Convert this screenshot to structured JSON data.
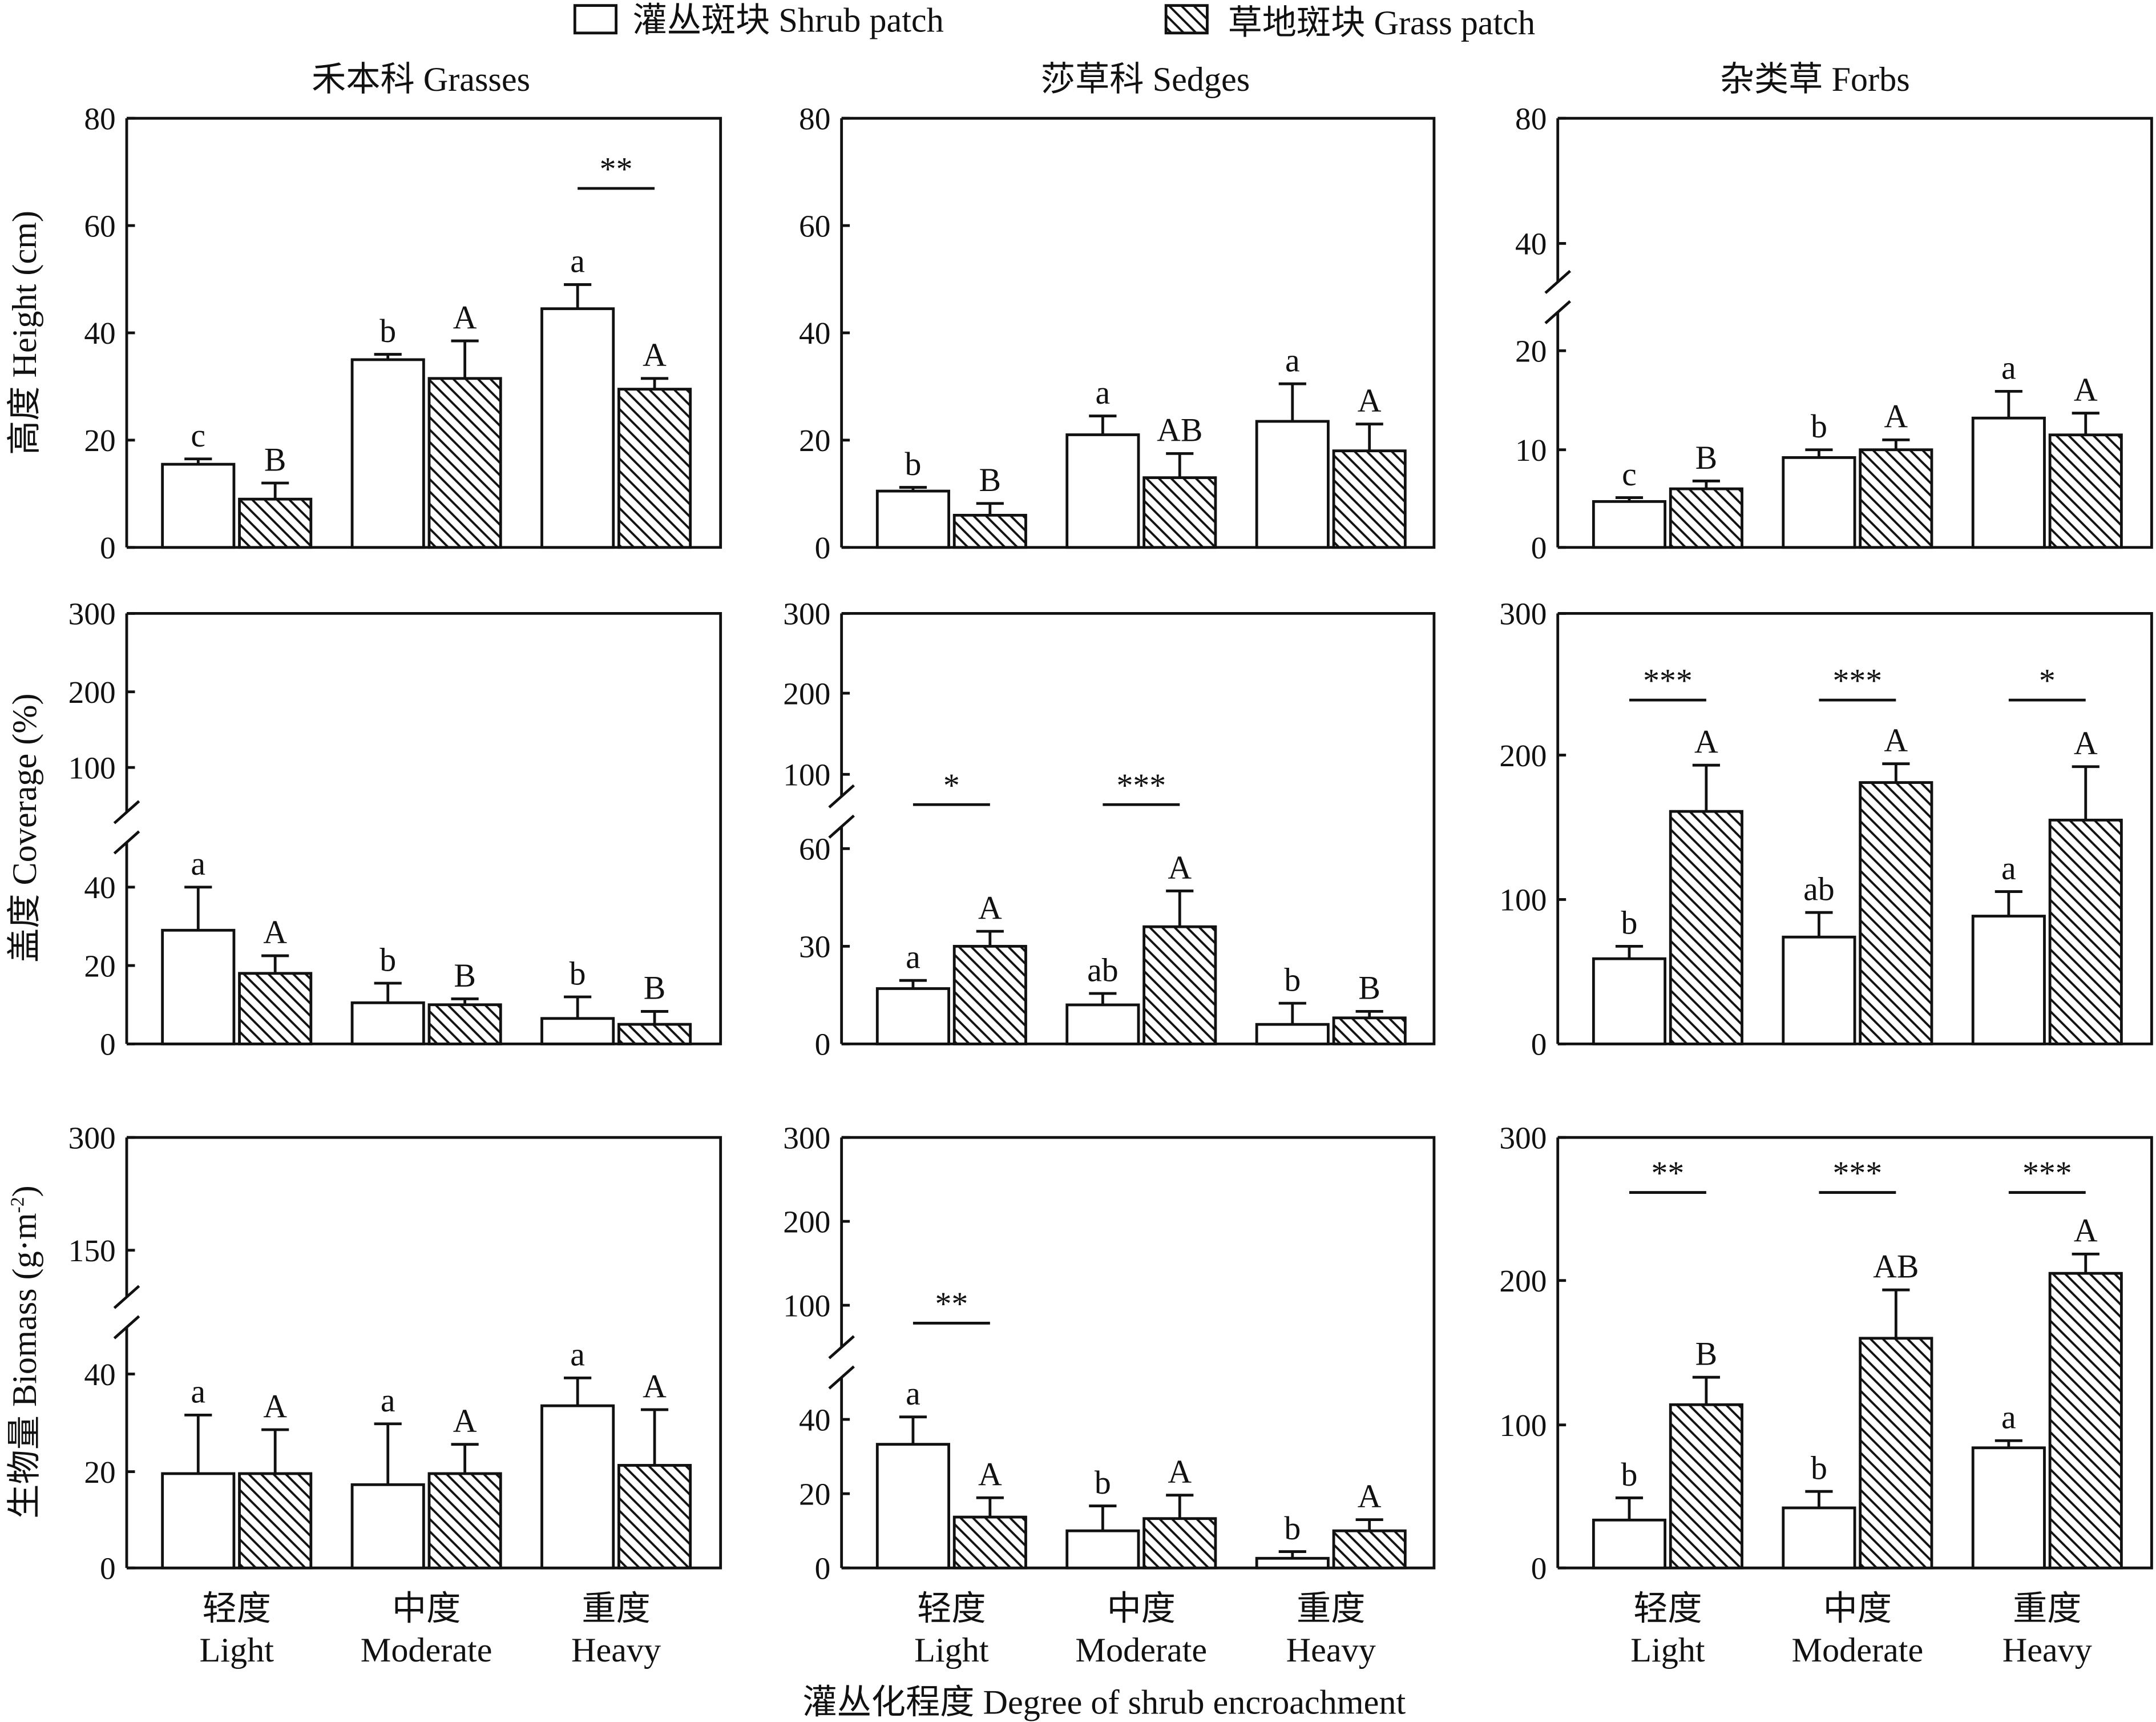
{
  "legend": {
    "shrub": "灌丛斑块 Shrub patch",
    "grass": "草地斑块 Grass patch"
  },
  "column_titles": [
    "禾本科 Grasses",
    "莎草科 Sedges",
    "杂类草 Forbs"
  ],
  "row_ylabels": [
    {
      "text": "高度 Height (cm)",
      "sup": ""
    },
    {
      "text": "盖度 Coverage (%)",
      "sup": ""
    },
    {
      "text": "生物量 Biomass (g·m",
      "sup": "-2",
      "tail": ")"
    }
  ],
  "categories": [
    {
      "zh": "轻度",
      "en": "Light"
    },
    {
      "zh": "中度",
      "en": "Moderate"
    },
    {
      "zh": "重度",
      "en": "Heavy"
    }
  ],
  "xlabel": "灌丛化程度 Degree of shrub encroachment",
  "colors": {
    "shrub_fill": "#ffffff",
    "grass_fill": "hatch",
    "line": "#111111"
  },
  "chart_data": [
    {
      "type": "bar",
      "row": 0,
      "col": 0,
      "y_ticks": [
        0,
        20,
        40,
        60,
        80
      ],
      "y_break": null,
      "series": [
        {
          "name": "Shrub patch",
          "values": [
            15.5,
            35,
            44.5
          ],
          "errors": [
            1,
            1,
            4.5
          ],
          "letters": [
            "c",
            "b",
            "a"
          ]
        },
        {
          "name": "Grass patch",
          "values": [
            9,
            31.5,
            29.5
          ],
          "errors": [
            3,
            7,
            2
          ],
          "letters": [
            "B",
            "A",
            "A"
          ]
        }
      ],
      "significance": [
        "",
        "",
        "**"
      ]
    },
    {
      "type": "bar",
      "row": 0,
      "col": 1,
      "y_ticks": [
        0,
        20,
        40,
        60,
        80
      ],
      "y_break": null,
      "series": [
        {
          "name": "Shrub patch",
          "values": [
            10.5,
            21,
            23.5
          ],
          "errors": [
            0.7,
            3.5,
            7
          ],
          "letters": [
            "b",
            "a",
            "a"
          ]
        },
        {
          "name": "Grass patch",
          "values": [
            6,
            13,
            18
          ],
          "errors": [
            2.2,
            4.5,
            5
          ],
          "letters": [
            "B",
            "AB",
            "A"
          ]
        }
      ],
      "significance": [
        "",
        "",
        ""
      ]
    },
    {
      "type": "bar",
      "row": 0,
      "col": 2,
      "y_ticks": [
        0,
        10,
        20,
        40,
        80
      ],
      "y_break": [
        20,
        40
      ],
      "series": [
        {
          "name": "Shrub patch",
          "values": [
            4.7,
            9.2,
            13.2
          ],
          "errors": [
            0.4,
            0.8,
            2.7
          ],
          "letters": [
            "c",
            "b",
            "a"
          ]
        },
        {
          "name": "Grass patch",
          "values": [
            6,
            10,
            11.5
          ],
          "errors": [
            0.8,
            1,
            2.2
          ],
          "letters": [
            "B",
            "A",
            "A"
          ]
        }
      ],
      "significance": [
        "",
        "",
        ""
      ]
    },
    {
      "type": "bar",
      "row": 1,
      "col": 0,
      "y_ticks": [
        0,
        20,
        40,
        100,
        200,
        300
      ],
      "y_break": [
        40,
        100
      ],
      "series": [
        {
          "name": "Shrub patch",
          "values": [
            29,
            10.5,
            6.5
          ],
          "errors": [
            11,
            5,
            5.5
          ],
          "letters": [
            "a",
            "b",
            "b"
          ]
        },
        {
          "name": "Grass patch",
          "values": [
            18,
            10,
            5
          ],
          "errors": [
            4.5,
            1.5,
            3.3
          ],
          "letters": [
            "A",
            "B",
            "B"
          ]
        }
      ],
      "significance": [
        "",
        "",
        ""
      ]
    },
    {
      "type": "bar",
      "row": 1,
      "col": 1,
      "y_ticks": [
        0,
        30,
        60,
        100,
        200,
        300
      ],
      "y_break": [
        60,
        100
      ],
      "series": [
        {
          "name": "Shrub patch",
          "values": [
            17,
            12,
            6
          ],
          "errors": [
            2.5,
            3.5,
            6.5
          ],
          "letters": [
            "a",
            "ab",
            "b"
          ]
        },
        {
          "name": "Grass patch",
          "values": [
            30,
            36,
            8
          ],
          "errors": [
            4.6,
            11,
            2
          ],
          "letters": [
            "A",
            "A",
            "B"
          ]
        }
      ],
      "significance": [
        "*",
        "***",
        ""
      ]
    },
    {
      "type": "bar",
      "row": 1,
      "col": 2,
      "y_ticks": [
        0,
        100,
        200,
        300
      ],
      "y_break": null,
      "series": [
        {
          "name": "Shrub patch",
          "values": [
            59,
            74,
            88.5
          ],
          "errors": [
            8.6,
            17,
            17
          ],
          "letters": [
            "b",
            "ab",
            "a"
          ]
        },
        {
          "name": "Grass patch",
          "values": [
            161,
            181,
            155
          ],
          "errors": [
            32,
            13,
            37
          ],
          "letters": [
            "A",
            "A",
            "A"
          ]
        }
      ],
      "significance": [
        "***",
        "***",
        "*"
      ]
    },
    {
      "type": "bar",
      "row": 2,
      "col": 0,
      "y_ticks": [
        0,
        20,
        40,
        150,
        300
      ],
      "y_break": [
        40,
        150
      ],
      "series": [
        {
          "name": "Shrub patch",
          "values": [
            19.6,
            17.3,
            33.5
          ],
          "errors": [
            12,
            12.5,
            5.7
          ],
          "letters": [
            "a",
            "a",
            "a"
          ]
        },
        {
          "name": "Grass patch",
          "values": [
            19.6,
            19.6,
            21.3
          ],
          "errors": [
            9,
            6,
            11.4
          ],
          "letters": [
            "A",
            "A",
            "A"
          ]
        }
      ],
      "significance": [
        "",
        "",
        ""
      ]
    },
    {
      "type": "bar",
      "row": 2,
      "col": 1,
      "y_ticks": [
        0,
        20,
        40,
        100,
        200,
        300
      ],
      "y_break": [
        40,
        100
      ],
      "series": [
        {
          "name": "Shrub patch",
          "values": [
            33.3,
            10,
            2.6
          ],
          "errors": [
            8,
            6.7,
            1.8
          ],
          "letters": [
            "a",
            "b",
            "b"
          ]
        },
        {
          "name": "Grass patch",
          "values": [
            13.7,
            13.3,
            10
          ],
          "errors": [
            5.2,
            6.3,
            3
          ],
          "letters": [
            "A",
            "A",
            "A"
          ]
        }
      ],
      "significance": [
        "**",
        "",
        ""
      ]
    },
    {
      "type": "bar",
      "row": 2,
      "col": 2,
      "y_ticks": [
        0,
        100,
        200,
        300
      ],
      "y_break": null,
      "series": [
        {
          "name": "Shrub patch",
          "values": [
            33.5,
            42,
            84
          ],
          "errors": [
            15.5,
            11.5,
            5
          ],
          "letters": [
            "b",
            "b",
            "a"
          ]
        },
        {
          "name": "Grass patch",
          "values": [
            114,
            160,
            205
          ],
          "errors": [
            19,
            33.5,
            13.5
          ],
          "letters": [
            "B",
            "AB",
            "A"
          ]
        }
      ],
      "significance": [
        "**",
        "***",
        "***"
      ]
    }
  ]
}
